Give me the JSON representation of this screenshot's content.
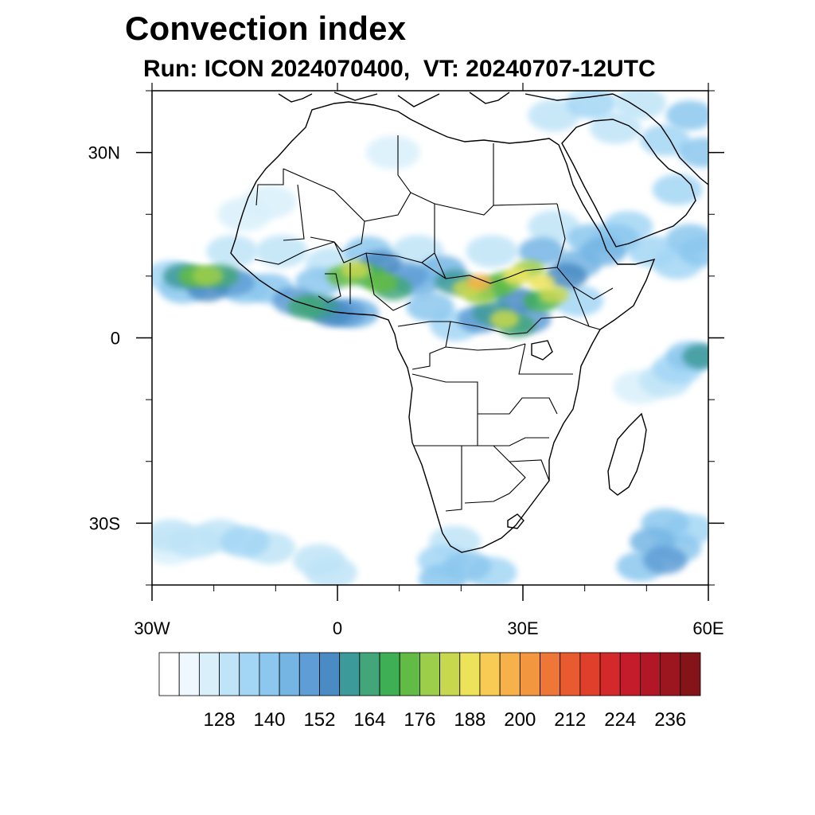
{
  "header": {
    "title": "Convection index",
    "subtitle": "Run: ICON 2024070400,  VT: 20240707-12UTC"
  },
  "map": {
    "extent": {
      "lon": [
        -30,
        60
      ],
      "lat": [
        -40,
        40
      ]
    },
    "x_ticks": [
      {
        "lon": -30,
        "label": "30W"
      },
      {
        "lon": 0,
        "label": "0"
      },
      {
        "lon": 30,
        "label": "30E"
      },
      {
        "lon": 60,
        "label": "60E"
      }
    ],
    "y_ticks": [
      {
        "lat": 30,
        "label": "30N"
      },
      {
        "lat": 0,
        "label": "0"
      },
      {
        "lat": -30,
        "label": "30S"
      }
    ],
    "field_cells": [
      {
        "lon": -27,
        "lat": 10,
        "level": 4
      },
      {
        "lon": -25,
        "lat": 10,
        "level": 9
      },
      {
        "lon": -23,
        "lat": 10,
        "level": 12
      },
      {
        "lon": -21,
        "lat": 10,
        "level": 13
      },
      {
        "lon": -19,
        "lat": 10,
        "level": 10
      },
      {
        "lon": -17,
        "lat": 9,
        "level": 7
      },
      {
        "lon": -25,
        "lat": 8,
        "level": 5
      },
      {
        "lon": -21,
        "lat": 8,
        "level": 8
      },
      {
        "lon": -15,
        "lat": 8,
        "level": 5
      },
      {
        "lon": -11,
        "lat": 8,
        "level": 5
      },
      {
        "lon": -7,
        "lat": 6,
        "level": 7
      },
      {
        "lon": -5,
        "lat": 5,
        "level": 10
      },
      {
        "lon": -3,
        "lat": 5,
        "level": 9
      },
      {
        "lon": -1,
        "lat": 4,
        "level": 8
      },
      {
        "lon": 1,
        "lat": 4,
        "level": 7
      },
      {
        "lon": 3,
        "lat": 4,
        "level": 6
      },
      {
        "lon": -3,
        "lat": 9,
        "level": 5
      },
      {
        "lon": 1,
        "lat": 10,
        "level": 12
      },
      {
        "lon": 3,
        "lat": 11,
        "level": 14
      },
      {
        "lon": 5,
        "lat": 10,
        "level": 11
      },
      {
        "lon": 7,
        "lat": 9,
        "level": 12
      },
      {
        "lon": 9,
        "lat": 8,
        "level": 10
      },
      {
        "lon": 7,
        "lat": 12,
        "level": 8
      },
      {
        "lon": 11,
        "lat": 10,
        "level": 7
      },
      {
        "lon": 13,
        "lat": 9,
        "level": 6
      },
      {
        "lon": 5,
        "lat": 14,
        "level": 5
      },
      {
        "lon": 17,
        "lat": 11,
        "level": 6
      },
      {
        "lon": 19,
        "lat": 9,
        "level": 9
      },
      {
        "lon": 21,
        "lat": 8,
        "level": 14
      },
      {
        "lon": 23,
        "lat": 9,
        "level": 17
      },
      {
        "lon": 23,
        "lat": 7,
        "level": 13
      },
      {
        "lon": 25,
        "lat": 8,
        "level": 11
      },
      {
        "lon": 27,
        "lat": 9,
        "level": 12
      },
      {
        "lon": 29,
        "lat": 10,
        "level": 15
      },
      {
        "lon": 31,
        "lat": 11,
        "level": 13
      },
      {
        "lon": 33,
        "lat": 9,
        "level": 15
      },
      {
        "lon": 35,
        "lat": 7,
        "level": 14
      },
      {
        "lon": 33,
        "lat": 6,
        "level": 11
      },
      {
        "lon": 29,
        "lat": 6,
        "level": 8
      },
      {
        "lon": 25,
        "lat": 4,
        "level": 9
      },
      {
        "lon": 27,
        "lat": 3,
        "level": 14
      },
      {
        "lon": 29,
        "lat": 2,
        "level": 10
      },
      {
        "lon": 23,
        "lat": 3,
        "level": 7
      },
      {
        "lon": 31,
        "lat": 3,
        "level": 7
      },
      {
        "lon": 33,
        "lat": 14,
        "level": 6
      },
      {
        "lon": 37,
        "lat": 10,
        "level": 8
      },
      {
        "lon": 39,
        "lat": 12,
        "level": 6
      },
      {
        "lon": 41,
        "lat": 16,
        "level": 5
      },
      {
        "lon": 43,
        "lat": 14,
        "level": 6
      },
      {
        "lon": 45,
        "lat": 16,
        "level": 5
      },
      {
        "lon": 47,
        "lat": 18,
        "level": 4
      },
      {
        "lon": 51,
        "lat": 14,
        "level": 4
      },
      {
        "lon": 55,
        "lat": 12,
        "level": 4
      },
      {
        "lon": 57,
        "lat": 16,
        "level": 5
      },
      {
        "lon": 59,
        "lat": 14,
        "level": 5
      },
      {
        "lon": 55,
        "lat": 24,
        "level": 4
      },
      {
        "lon": 53,
        "lat": 32,
        "level": 4
      },
      {
        "lon": 57,
        "lat": 36,
        "level": 5
      },
      {
        "lon": 49,
        "lat": 38,
        "level": 3
      },
      {
        "lon": 45,
        "lat": 34,
        "level": 3
      },
      {
        "lon": 41,
        "lat": 38,
        "level": 4
      },
      {
        "lon": 35,
        "lat": 36,
        "level": 3
      },
      {
        "lon": 59,
        "lat": 30,
        "level": 5
      },
      {
        "lon": 57,
        "lat": -3,
        "level": 5
      },
      {
        "lon": 59,
        "lat": -3,
        "level": 9
      },
      {
        "lon": 55,
        "lat": -5,
        "level": 4
      },
      {
        "lon": 53,
        "lat": -7,
        "level": 3
      },
      {
        "lon": 49,
        "lat": -8,
        "level": 2
      },
      {
        "lon": 53,
        "lat": -30,
        "level": 5
      },
      {
        "lon": 51,
        "lat": -33,
        "level": 6
      },
      {
        "lon": 53,
        "lat": -36,
        "level": 7
      },
      {
        "lon": 57,
        "lat": -31,
        "level": 4
      },
      {
        "lon": 49,
        "lat": -37,
        "level": 5
      },
      {
        "lon": 55,
        "lat": -34,
        "level": 5
      },
      {
        "lon": -27,
        "lat": -32,
        "level": 3
      },
      {
        "lon": -23,
        "lat": -33,
        "level": 3
      },
      {
        "lon": -19,
        "lat": -32,
        "level": 3
      },
      {
        "lon": -15,
        "lat": -33,
        "level": 4
      },
      {
        "lon": -11,
        "lat": -34,
        "level": 3
      },
      {
        "lon": -27,
        "lat": -34,
        "level": 2
      },
      {
        "lon": -3,
        "lat": -36,
        "level": 3
      },
      {
        "lon": -1,
        "lat": -38,
        "level": 3
      },
      {
        "lon": 17,
        "lat": -36,
        "level": 4
      },
      {
        "lon": 21,
        "lat": -37,
        "level": 5
      },
      {
        "lon": 25,
        "lat": -38,
        "level": 4
      },
      {
        "lon": 19,
        "lat": -33,
        "level": 3
      },
      {
        "lon": 17,
        "lat": -39,
        "level": 5
      },
      {
        "lon": -11,
        "lat": 22,
        "level": 2
      },
      {
        "lon": -15,
        "lat": 20,
        "level": 2
      },
      {
        "lon": -17,
        "lat": 14,
        "level": 3
      },
      {
        "lon": -9,
        "lat": 14,
        "level": 3
      },
      {
        "lon": -1,
        "lat": 12,
        "level": 3
      },
      {
        "lon": 13,
        "lat": 14,
        "level": 3
      },
      {
        "lon": 25,
        "lat": 14,
        "level": 3
      },
      {
        "lon": 9,
        "lat": 30,
        "level": 2
      },
      {
        "lon": 35,
        "lat": 18,
        "level": 3
      },
      {
        "lon": 39,
        "lat": 6,
        "level": 4
      },
      {
        "lon": 19,
        "lat": 2,
        "level": 4
      },
      {
        "lon": 15,
        "lat": 5,
        "level": 5
      }
    ]
  },
  "colorbar": {
    "colors": [
      "#ffffff",
      "#eef8fe",
      "#d9f0fb",
      "#bfe4f7",
      "#a3d6f5",
      "#8bc7ee",
      "#74b5e4",
      "#5f9dd6",
      "#4a8bc4",
      "#3c9a9a",
      "#42a67a",
      "#3eaf55",
      "#62bb45",
      "#9ccd4b",
      "#c7d74e",
      "#ede35a",
      "#f8cb55",
      "#f7b14a",
      "#f39640",
      "#ee7737",
      "#e85a30",
      "#e03f2c",
      "#d4292a",
      "#c41c2a",
      "#b11726",
      "#9c1620",
      "#851419"
    ],
    "labels": [
      "128",
      "140",
      "152",
      "164",
      "176",
      "188",
      "200",
      "212",
      "224",
      "236"
    ]
  }
}
